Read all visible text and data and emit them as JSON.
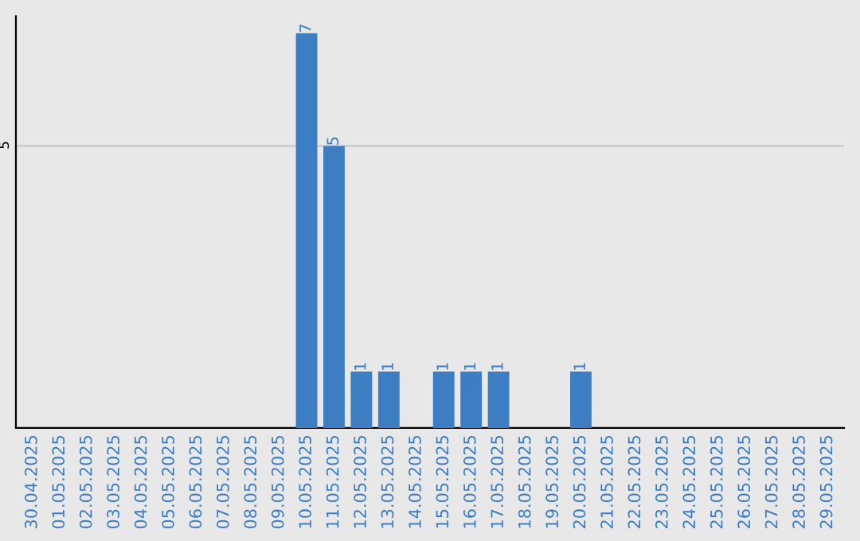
{
  "chart_data": {
    "type": "bar",
    "categories": [
      "30.04.2025",
      "01.05.2025",
      "02.05.2025",
      "03.05.2025",
      "04.05.2025",
      "05.05.2025",
      "06.05.2025",
      "07.05.2025",
      "08.05.2025",
      "09.05.2025",
      "10.05.2025",
      "11.05.2025",
      "12.05.2025",
      "13.05.2025",
      "14.05.2025",
      "15.05.2025",
      "16.05.2025",
      "17.05.2025",
      "18.05.2025",
      "19.05.2025",
      "20.05.2025",
      "21.05.2025",
      "22.05.2025",
      "23.05.2025",
      "24.05.2025",
      "25.05.2025",
      "26.05.2025",
      "27.05.2025",
      "28.05.2025",
      "29.05.2025"
    ],
    "values": [
      null,
      null,
      null,
      null,
      null,
      null,
      null,
      null,
      null,
      null,
      7,
      5,
      1,
      1,
      null,
      1,
      1,
      1,
      null,
      null,
      1,
      null,
      null,
      null,
      null,
      null,
      null,
      null,
      null,
      null
    ],
    "color": "#3d7dc2",
    "ylim": [
      0,
      7.3
    ],
    "yticks": [
      5
    ],
    "grid": "y",
    "data_labels": true
  }
}
